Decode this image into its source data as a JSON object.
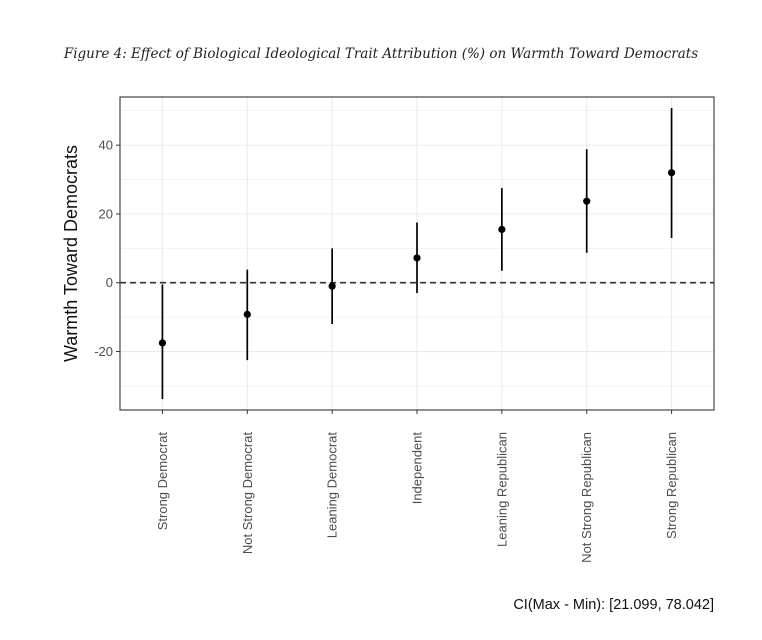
{
  "caption": "Figure 4: Effect of Biological Ideological Trait Attribution (%) on Warmth Toward Democrats",
  "footnote": "CI(Max - Min): [21.099, 78.042]",
  "chart_data": {
    "type": "pointrange",
    "ylabel": "Warmth Toward Democrats",
    "xlabel": "",
    "categories": [
      "Strong Democrat",
      "Not Strong Democrat",
      "Leaning Democrat",
      "Independent",
      "Leaning Republican",
      "Not Strong Republican",
      "Strong Republican"
    ],
    "estimates": [
      -17.5,
      -9.2,
      -1.0,
      7.2,
      15.5,
      23.7,
      32.0
    ],
    "lower": [
      -33.8,
      -22.5,
      -12.0,
      -3.0,
      3.5,
      8.7,
      13.0
    ],
    "upper": [
      -0.5,
      3.8,
      10.0,
      17.5,
      27.5,
      38.8,
      50.8
    ],
    "ylim": [
      -37,
      54
    ],
    "yticks": [
      -20,
      0,
      20,
      40
    ],
    "reference_line": 0,
    "grid": true,
    "colors": {
      "point": "#000000",
      "reference": "#333333",
      "grid": "#ebebeb",
      "panel_border": "#333333"
    }
  }
}
